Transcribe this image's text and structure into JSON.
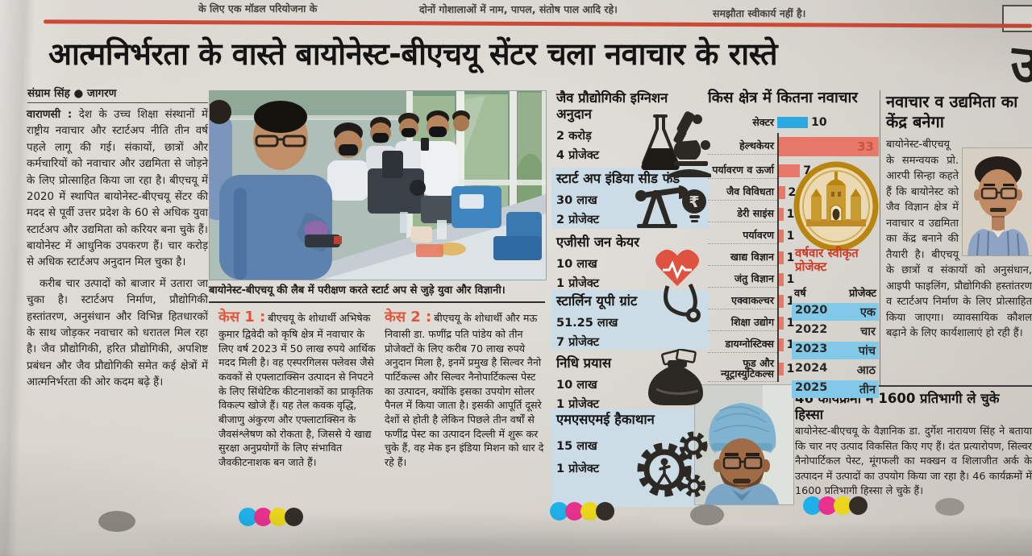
{
  "masthead_strip": {
    "fragment_left": "के लिए एक मॉडल परियोजना के",
    "fragment_mid": "दोनों गोशालाओं में नाम, पापल, संतोष पाल आदि रहे।",
    "fragment_right": "समझौता स्वीकार्य नहीं है।"
  },
  "headline": "आत्मनिर्भरता के वास्ते बायोनेस्ट-बीएचयू सेंटर चला नवाचार के रास्ते",
  "byline": "संग्राम सिंह ● जागरण",
  "lead": {
    "dateline": "वाराणसी :",
    "para1": "देश के उच्च शिक्षा संस्थानों में राष्ट्रीय नवाचार और स्टार्टअप नीति तीन वर्ष पहले लागू की गई। संकायों, छात्रों और कर्मचारियों को नवाचार और उद्यमिता से जोड़ने के लिए प्रोत्साहित किया जा रहा है। बीएचयू में 2020 में स्थापित बायोनेस्ट-बीएचयू सेंटर की मदद से पूर्वी उत्तर प्रदेश के 60 से अधिक युवा स्टार्टअप और उद्यमिता को करियर बना चुके हैं। बायोनेस्ट में आधुनिक उपकरण हैं। चार करोड़ से अधिक स्टार्टअप अनुदान मिल चुका है।",
    "para2": "करीब चार उत्पादों को बाजार में उतारा जा चुका है। स्टार्टअप निर्माण, प्रौद्योगिकी हस्तांतरण, अनुसंधान और विभिन्न हितधारकों के साथ जोड़कर नवाचार को धरातल मिल रहा है। जैव प्रौद्योगिकी, हरित प्रौद्योगिकी, अपशिष्ट प्रबंधन और जैव प्रौद्योगिकी समेत कई क्षेत्रों में आत्मनिर्भरता की ओर कदम बढ़े हैं।"
  },
  "photo_caption": "बायोनेस्ट-बीएचयू की लैब में परीक्षण करते स्टार्ट अप से जुड़े युवा और विज्ञानी।",
  "cases": [
    {
      "label": "केस 1 :",
      "text": "बीएचयू के शोधार्थी अभिषेक कुमार द्विवेदी को कृषि क्षेत्र में नवाचार के लिए वर्ष 2023 में 50 लाख रुपये आर्थिक मदद मिली है। वह एस्परगिलस फ्लेवस जैसे कवकों से एफ्लाटाक्सिन उत्पादन से निपटने के लिए सिंथेटिक कीटनाशकों का प्राकृतिक विकल्प खोजे हैं। यह तेल कवक वृद्धि, बीजाणु अंकुरण और एफ्लाटाक्सिन के जैवसंश्लेषण को रोकता है, जिससे ये खाद्य सुरक्षा अनुप्रयोगों के लिए संभावित जैवकीटनाशक बन जाते हैं।"
    },
    {
      "label": "केस 2 :",
      "text": "बीएचयू के शोधार्थी और मऊ निवासी डा. फणींद्र पति पांडेय को तीन प्रोजेक्टों के लिए करीब 70 लाख रुपये अनुदान मिला है, इनमें प्रमुख है सिल्वर नैनो पार्टिकल्स और सिल्वर नैनोपार्टिकल्स पेस्ट का उत्पादन, क्योंकि इसका उपयोग सोलर पैनल में किया जाता है। इसकी आपूर्ति दूसरे देशों से होती है लेकिन पिछले तीन वर्षों से फणींद्र पेस्ट का उत्पादन दिल्ली में शुरू कर चुके हैं, वह मेक इन इंडिया मिशन को धार दे रहे हैं।"
    }
  ],
  "grants": [
    {
      "title": "जैव प्रौद्योगिकी इग्निशन अनुदान",
      "amount": "2 करोड़",
      "projects": "4 प्रोजेक्ट",
      "icon": "flask-and-microscope"
    },
    {
      "title": "स्टार्ट अप इंडिया सीड फंड",
      "amount": "30 लाख",
      "projects": "2 प्रोजेक्ट",
      "icon": "oil-pump-and-rupee-bulb"
    },
    {
      "title": "एजीसी जन केयर",
      "amount": "10 लाख",
      "projects": "1 प्रोजेक्ट",
      "icon": "heart-with-stethoscope"
    },
    {
      "title": "स्टार्लिन यूपी ग्रांट",
      "amount": "51.25 लाख",
      "projects": "7 प्रोजेक्ट",
      "icon": "stethoscope"
    },
    {
      "title": "निधि प्रयास",
      "amount": "10 लाख",
      "projects": "1 प्रोजेक्ट",
      "icon": "money-bag"
    },
    {
      "title": "एमएसएमई हैकाथान",
      "amount": "15 लाख",
      "projects": "1 प्रोजेक्ट",
      "icon": "gears-with-person"
    }
  ],
  "chart_data": [
    {
      "type": "bar",
      "orientation": "horizontal",
      "title": "किस क्षेत्र में कितना नवाचार",
      "legend": {
        "label": "सेक्टर",
        "value": 10
      },
      "categories": [
        "हेल्थकेयर",
        "पर्यावरण व ऊर्जा",
        "जैव विविधता",
        "डेरी साइंस",
        "पर्यावरण",
        "खाद्य विज्ञान",
        "जंतु विज्ञान",
        "एक्वाकल्चर",
        "शिक्षा उद्योग",
        "डायग्नोस्टिक्स",
        "फूड और न्यूट्रास्युटिकल्स"
      ],
      "values": [
        33,
        7,
        2,
        1,
        1,
        1,
        1,
        1,
        1,
        1,
        1
      ],
      "xlim": [
        0,
        33
      ],
      "bar_color": "#e8786a",
      "legend_color": "#2da9e1",
      "grid": false,
      "legend_position": "top"
    },
    {
      "type": "table",
      "title": "वर्षवार स्वीकृत प्रोजेक्ट",
      "columns": [
        "वर्ष",
        "प्रोजेक्ट"
      ],
      "rows": [
        [
          "2020",
          "एक"
        ],
        [
          "2022",
          "चार"
        ],
        [
          "2023",
          "पांच"
        ],
        [
          "2024",
          "आठ"
        ],
        [
          "2025",
          "तीन"
        ]
      ],
      "highlighted_rows": [
        0,
        2,
        4
      ],
      "highlight_color": "#82c9e9"
    }
  ],
  "side_article": {
    "heading": "नवाचार व उद्यमिता का केंद्र बनेगा",
    "body": "बायोनेस्ट-बीएचयू के समन्वयक प्रो. आरपी सिन्हा कहते हैं कि बायोनेस्ट को जैव विज्ञान क्षेत्र में नवाचार व उद्यमिता का केंद्र बनाने की तैयारी है। बीएचयू के छात्रों व संकायों को अनुसंधान, आइपी फाइलिंग, प्रौद्योगिकी हस्तांतरण व स्टार्टअप निर्माण के लिए प्रोत्साहित किया जाएगा। व्यावसायिक कौशल बढ़ाने के लिए कार्यशालाएं हो रही हैं।"
  },
  "bottom_article": {
    "heading": "46 कार्यक्रमों में 1600 प्रतिभागी ले चुके हिस्सा",
    "body": "बायोनेस्ट-बीएचयू के वैज्ञानिक डा. दुर्गेश नारायण सिंह ने बताया कि चार नए उत्पाद विकसित किए गए हैं। दंत प्रत्यारोपण, सिल्वर नैनोपार्टिकल पेस्ट, मूंगफली का मक्खन व शिलाजीत अर्क के उत्पादन में उत्पादों का उपयोग किया जा रहा है। 46 कार्यक्रमों में 1600 प्रतिभागी हिस्सा ले चुके हैं।"
  },
  "colors": {
    "rule_red": "#cc4a35",
    "case_red": "#e0563c",
    "bar_salmon": "#e8786a",
    "legend_blue": "#2da9e1",
    "table_highlight_blue": "#82c9e9",
    "panel_shade_blue": "#ccdce6",
    "emblem_gold": "#b8860f"
  }
}
